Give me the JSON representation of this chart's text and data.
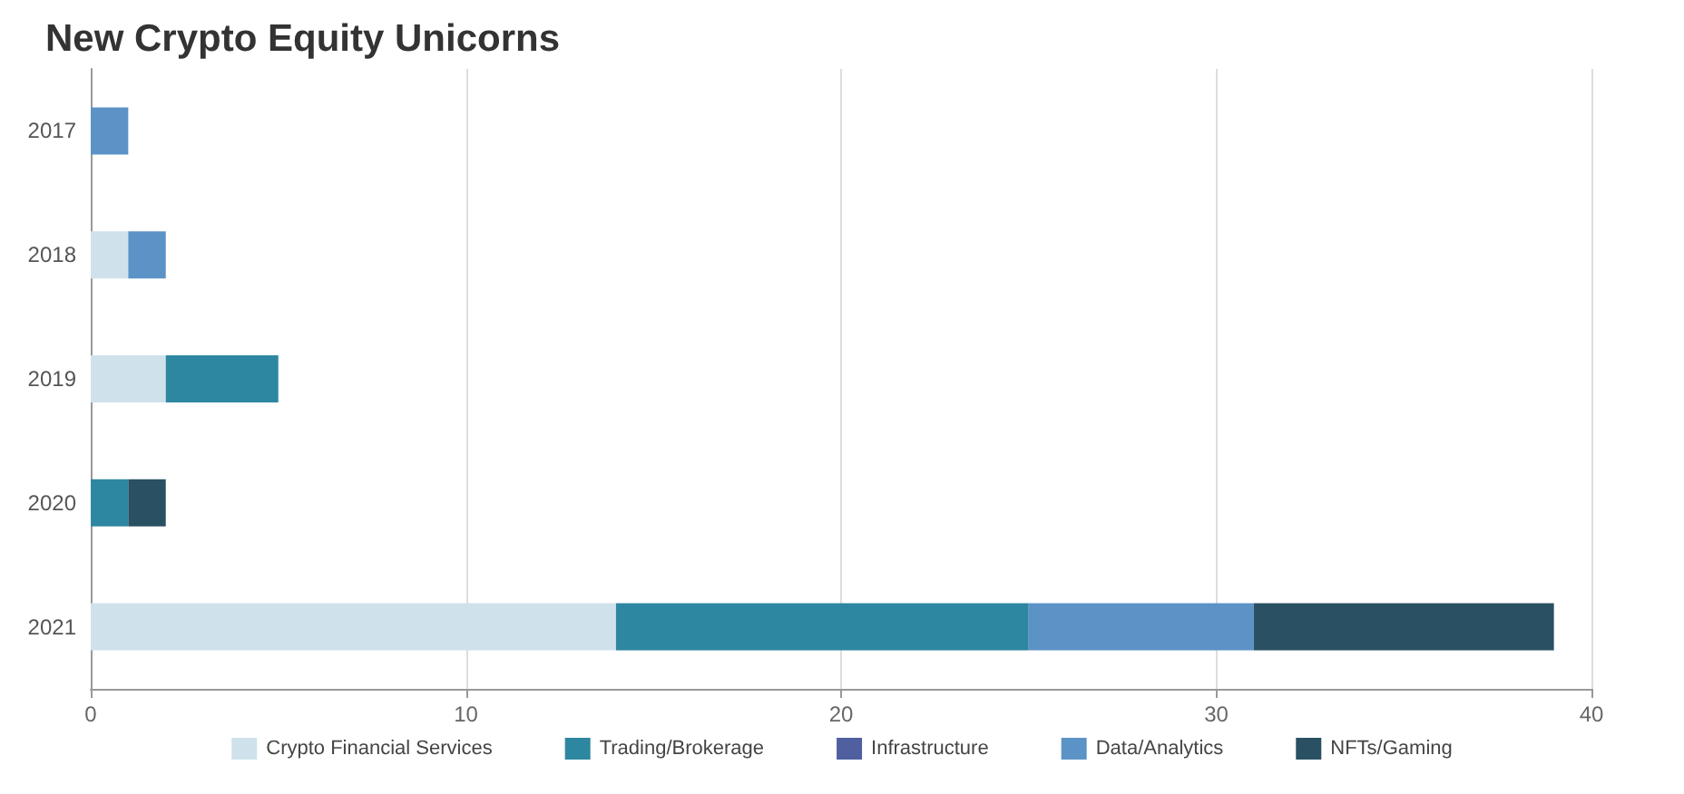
{
  "chart_data": {
    "type": "bar",
    "title": "New Crypto Equity Unicorns",
    "orientation": "horizontal",
    "stacked": true,
    "categories": [
      "2017",
      "2018",
      "2019",
      "2020",
      "2021"
    ],
    "series": [
      {
        "name": "Crypto Financial Services",
        "color": "#cfe2ec",
        "values": [
          null,
          1,
          2,
          null,
          14
        ]
      },
      {
        "name": "Trading/Brokerage",
        "color": "#2e87a0",
        "values": [
          null,
          null,
          3,
          1,
          11
        ]
      },
      {
        "name": "Infrastructure",
        "color": "#4f5fa0",
        "values": [
          null,
          null,
          null,
          null,
          null
        ]
      },
      {
        "name": "Data/Analytics",
        "color": "#5b93c7",
        "values": [
          1,
          1,
          null,
          null,
          6
        ]
      },
      {
        "name": "NFTs/Gaming",
        "color": "#2a5163",
        "values": [
          null,
          null,
          null,
          1,
          8
        ]
      }
    ],
    "xlim": [
      0,
      40
    ],
    "xticks": [
      0,
      10,
      20,
      30,
      40
    ],
    "grid": "x",
    "legend": "bottom"
  }
}
